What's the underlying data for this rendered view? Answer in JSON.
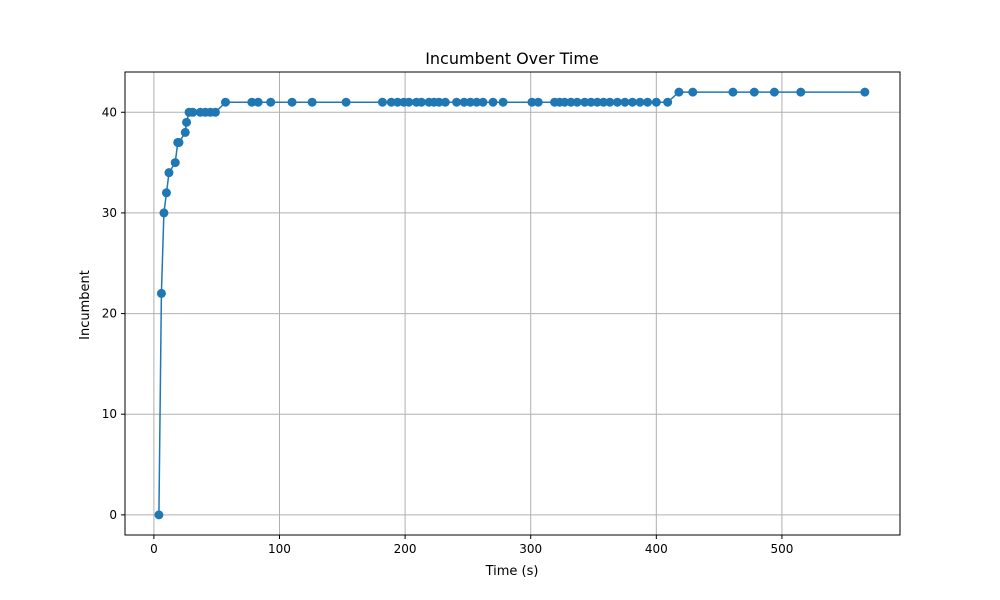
{
  "chart_data": {
    "type": "line",
    "title": "Incumbent Over Time",
    "xlabel": "Time (s)",
    "ylabel": "Incumbent",
    "xlim": [
      -23,
      594
    ],
    "ylim": [
      -2,
      44
    ],
    "xticks": [
      0,
      100,
      200,
      300,
      400,
      500
    ],
    "yticks": [
      0,
      10,
      20,
      30,
      40
    ],
    "grid": true,
    "marker": "circle",
    "colors": {
      "series": "#1f77b4"
    },
    "series": [
      {
        "name": "",
        "x": [
          4,
          6,
          8,
          10,
          12,
          17,
          19,
          20,
          25,
          26,
          28,
          31,
          37,
          41,
          45,
          49,
          57,
          78,
          83,
          93,
          110,
          126,
          153,
          182,
          189,
          194,
          199,
          203,
          209,
          213,
          219,
          223,
          227,
          232,
          241,
          247,
          252,
          257,
          262,
          270,
          278,
          301,
          306,
          319,
          323,
          327,
          332,
          337,
          343,
          348,
          353,
          358,
          363,
          369,
          375,
          381,
          387,
          393,
          400,
          409,
          418,
          429,
          461,
          478,
          494,
          515,
          566
        ],
        "y": [
          0,
          22,
          30,
          32,
          34,
          35,
          37,
          37,
          38,
          39,
          40,
          40,
          40,
          40,
          40,
          40,
          41,
          41,
          41,
          41,
          41,
          41,
          41,
          41,
          41,
          41,
          41,
          41,
          41,
          41,
          41,
          41,
          41,
          41,
          41,
          41,
          41,
          41,
          41,
          41,
          41,
          41,
          41,
          41,
          41,
          41,
          41,
          41,
          41,
          41,
          41,
          41,
          41,
          41,
          41,
          41,
          41,
          41,
          41,
          41,
          42,
          42,
          42,
          42,
          42,
          42,
          42
        ]
      }
    ]
  }
}
